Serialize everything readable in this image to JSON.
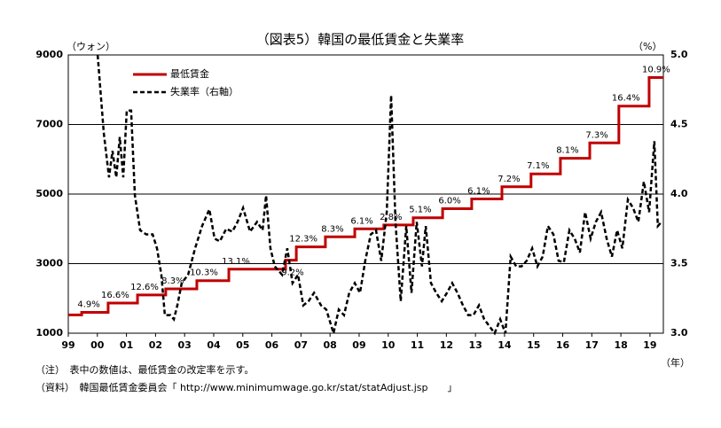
{
  "chart_data": {
    "type": "line",
    "title": "（図表5）韓国の最低賃金と失業率",
    "ylabel": "（ウォン）",
    "y2label": "（%）",
    "xlabel": "（年）",
    "notes": [
      "（注）　表中の数値は、最低賃金の改定率を示す。",
      "（資料）　韓国最低賃金委員会「 http://www.minimumwage.go.kr/stat/statAdjust.jsp　　」"
    ],
    "xlim": [
      1999,
      2019.46
    ],
    "xticks": [
      {
        "value": 1999,
        "label": "99"
      },
      {
        "value": 2000,
        "label": "00"
      },
      {
        "value": 2001,
        "label": "01"
      },
      {
        "value": 2002,
        "label": "02"
      },
      {
        "value": 2003,
        "label": "03"
      },
      {
        "value": 2004,
        "label": "04"
      },
      {
        "value": 2005,
        "label": "05"
      },
      {
        "value": 2006,
        "label": "06"
      },
      {
        "value": 2007,
        "label": "07"
      },
      {
        "value": 2008,
        "label": "08"
      },
      {
        "value": 2009,
        "label": "09"
      },
      {
        "value": 2010,
        "label": "10"
      },
      {
        "value": 2011,
        "label": "11"
      },
      {
        "value": 2012,
        "label": "12"
      },
      {
        "value": 2013,
        "label": "13"
      },
      {
        "value": 2014,
        "label": "14"
      },
      {
        "value": 2015,
        "label": "15"
      },
      {
        "value": 2016,
        "label": "16"
      },
      {
        "value": 2017,
        "label": "17"
      },
      {
        "value": 2018,
        "label": "18"
      },
      {
        "value": 2019,
        "label": "19"
      }
    ],
    "ylim": [
      1000,
      9000
    ],
    "yticks": [
      1000,
      3000,
      5000,
      7000,
      9000
    ],
    "y2lim": [
      3,
      5
    ],
    "y2ticks": [
      {
        "value": 3,
        "label": "3.0"
      },
      3.5,
      {
        "value": 4,
        "label": "4.0"
      },
      4.5,
      {
        "value": 5,
        "label": "5.0"
      }
    ],
    "grid": true,
    "legend": "upper left",
    "series": [
      {
        "name": "最低賃金",
        "color": "#c00000",
        "step": true,
        "x": [
          1999,
          1999.46,
          2000.37,
          2001.38,
          2002.35,
          2003.42,
          2004.52,
          2006.47,
          2006.84,
          2007.84,
          2008.85,
          2009.85,
          2010.86,
          2011.87,
          2012.87,
          2013.91,
          2014.91,
          2015.92,
          2016.93,
          2017.93,
          2018.97
        ],
        "values": [
          1525,
          1600,
          1865,
          2100,
          2275,
          2510,
          2840,
          3100,
          3480,
          3770,
          4000,
          4110,
          4320,
          4580,
          4860,
          5210,
          5580,
          6030,
          6470,
          7530,
          8350
        ],
        "labels": [
          null,
          "4.9%",
          "16.6%",
          "12.6%",
          "8.3%",
          "10.3%",
          "13.1%",
          "9.2%",
          "12.3%",
          "8.3%",
          "6.1%",
          "2.8%",
          "5.1%",
          "6.0%",
          "6.1%",
          "7.2%",
          "7.1%",
          "8.1%",
          "7.3%",
          "16.4%",
          "10.9%"
        ]
      },
      {
        "name": "失業率（右軸）",
        "color": "#000000",
        "dashed": true,
        "axis": "y2",
        "x": [
          2000.01,
          2000.22,
          2000.4,
          2000.52,
          2000.65,
          2000.77,
          2000.89,
          2001.01,
          2001.16,
          2001.29,
          2001.47,
          2001.68,
          2001.9,
          2002.05,
          2002.2,
          2002.32,
          2002.51,
          2002.63,
          2002.75,
          2002.9,
          2003.12,
          2003.36,
          2003.6,
          2003.85,
          2004.03,
          2004.21,
          2004.43,
          2004.64,
          2004.82,
          2005.01,
          2005.25,
          2005.49,
          2005.68,
          2005.8,
          2005.95,
          2006.1,
          2006.35,
          2006.53,
          2006.71,
          2006.9,
          2007.08,
          2007.26,
          2007.45,
          2007.69,
          2007.87,
          2008.12,
          2008.3,
          2008.48,
          2008.66,
          2008.85,
          2009.03,
          2009.21,
          2009.4,
          2009.58,
          2009.76,
          2009.95,
          2010.1,
          2010.25,
          2010.43,
          2010.62,
          2010.8,
          2010.98,
          2011.16,
          2011.29,
          2011.47,
          2011.65,
          2011.84,
          2012.02,
          2012.2,
          2012.38,
          2012.57,
          2012.75,
          2012.93,
          2013.12,
          2013.3,
          2013.48,
          2013.66,
          2013.85,
          2014.03,
          2014.21,
          2014.4,
          2014.58,
          2014.76,
          2014.95,
          2015.13,
          2015.31,
          2015.49,
          2015.68,
          2015.86,
          2016.04,
          2016.23,
          2016.41,
          2016.59,
          2016.77,
          2016.96,
          2017.14,
          2017.32,
          2017.51,
          2017.69,
          2017.87,
          2018.05,
          2018.24,
          2018.42,
          2018.6,
          2018.79,
          2018.97,
          2019.15,
          2019.27,
          2019.4
        ],
        "values": [
          5.0,
          4.44,
          4.12,
          4.31,
          4.12,
          4.41,
          4.12,
          4.6,
          4.6,
          3.99,
          3.74,
          3.71,
          3.71,
          3.61,
          3.42,
          3.13,
          3.13,
          3.1,
          3.2,
          3.36,
          3.42,
          3.61,
          3.77,
          3.89,
          3.68,
          3.66,
          3.75,
          3.73,
          3.8,
          3.9,
          3.73,
          3.8,
          3.74,
          3.99,
          3.61,
          3.48,
          3.42,
          3.61,
          3.36,
          3.42,
          3.2,
          3.23,
          3.29,
          3.2,
          3.17,
          3.0,
          3.17,
          3.13,
          3.29,
          3.36,
          3.29,
          3.52,
          3.71,
          3.74,
          3.52,
          3.87,
          4.71,
          3.8,
          3.23,
          3.77,
          3.29,
          3.8,
          3.48,
          3.77,
          3.36,
          3.29,
          3.23,
          3.29,
          3.36,
          3.29,
          3.2,
          3.13,
          3.13,
          3.2,
          3.1,
          3.05,
          3.0,
          3.1,
          3.0,
          3.55,
          3.48,
          3.48,
          3.52,
          3.61,
          3.48,
          3.55,
          3.77,
          3.71,
          3.52,
          3.51,
          3.74,
          3.68,
          3.58,
          3.87,
          3.68,
          3.8,
          3.87,
          3.68,
          3.55,
          3.74,
          3.61,
          3.96,
          3.9,
          3.8,
          4.09,
          3.87,
          4.38,
          3.77,
          3.8
        ]
      }
    ]
  }
}
